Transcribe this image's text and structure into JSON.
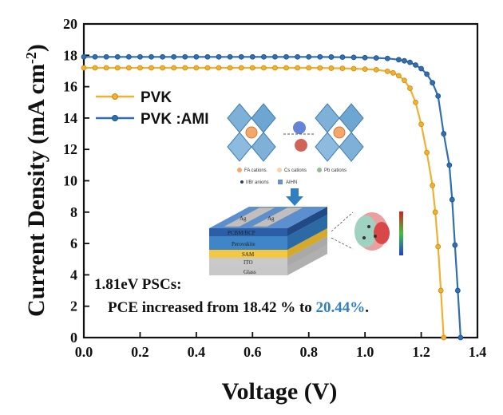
{
  "chart_data": {
    "type": "line",
    "xlabel": "Voltage (V)",
    "ylabel": "Current Density (mA cm",
    "ylabel_sup": "-2",
    "ylabel_close": ")",
    "xlim": [
      0.0,
      1.4
    ],
    "ylim": [
      0,
      20
    ],
    "x_ticks": [
      "0.0",
      "0.2",
      "0.4",
      "0.6",
      "0.8",
      "1.0",
      "1.2",
      "1.4"
    ],
    "y_ticks": [
      "0",
      "2",
      "4",
      "6",
      "8",
      "10",
      "12",
      "14",
      "16",
      "18",
      "20"
    ],
    "legend_position": "top-left",
    "series": [
      {
        "name": "PVK",
        "color": "#f0b030",
        "x": [
          0.0,
          0.04,
          0.08,
          0.12,
          0.16,
          0.2,
          0.24,
          0.28,
          0.32,
          0.36,
          0.4,
          0.44,
          0.48,
          0.52,
          0.56,
          0.6,
          0.64,
          0.68,
          0.72,
          0.76,
          0.8,
          0.84,
          0.88,
          0.92,
          0.96,
          1.0,
          1.04,
          1.08,
          1.1,
          1.12,
          1.14,
          1.16,
          1.18,
          1.2,
          1.22,
          1.24,
          1.25,
          1.26,
          1.27,
          1.28
        ],
        "y": [
          17.2,
          17.2,
          17.2,
          17.2,
          17.2,
          17.2,
          17.2,
          17.2,
          17.2,
          17.2,
          17.2,
          17.2,
          17.2,
          17.2,
          17.2,
          17.2,
          17.2,
          17.2,
          17.2,
          17.2,
          17.2,
          17.19,
          17.18,
          17.17,
          17.15,
          17.12,
          17.08,
          16.98,
          16.88,
          16.7,
          16.4,
          15.9,
          15.0,
          13.6,
          11.8,
          9.7,
          8.0,
          5.8,
          3.0,
          0.0
        ]
      },
      {
        "name": "PVK :AMI",
        "color": "#2f6fb2",
        "x": [
          0.0,
          0.04,
          0.08,
          0.12,
          0.16,
          0.2,
          0.24,
          0.28,
          0.32,
          0.36,
          0.4,
          0.44,
          0.48,
          0.52,
          0.56,
          0.6,
          0.64,
          0.68,
          0.72,
          0.76,
          0.8,
          0.84,
          0.88,
          0.92,
          0.96,
          1.0,
          1.04,
          1.08,
          1.12,
          1.14,
          1.16,
          1.18,
          1.2,
          1.22,
          1.24,
          1.26,
          1.28,
          1.3,
          1.31,
          1.32,
          1.33,
          1.34
        ],
        "y": [
          17.9,
          17.9,
          17.9,
          17.9,
          17.9,
          17.9,
          17.9,
          17.9,
          17.9,
          17.9,
          17.9,
          17.9,
          17.9,
          17.9,
          17.9,
          17.9,
          17.9,
          17.9,
          17.9,
          17.9,
          17.9,
          17.9,
          17.89,
          17.88,
          17.87,
          17.85,
          17.83,
          17.8,
          17.72,
          17.65,
          17.55,
          17.38,
          17.15,
          16.8,
          16.25,
          15.4,
          13.0,
          11.0,
          8.8,
          5.9,
          3.0,
          0.0
        ]
      }
    ],
    "annotation": {
      "line1": "1.81eV PSCs:",
      "line2_prefix": "PCE increased from 18.42 % to ",
      "line2_highlight": "20.44%",
      "line2_suffix": ".",
      "highlight_color": "#2f7fc1"
    },
    "inset": {
      "crystal_legend": [
        "FA cations",
        "Cs cations",
        "Pb cations",
        "I/Br anions",
        "AIHN"
      ],
      "device_layers": [
        "Ag",
        "Ag",
        "PCBM/BCP",
        "Perovskite",
        "SAM",
        "ITO",
        "Glass"
      ]
    }
  }
}
